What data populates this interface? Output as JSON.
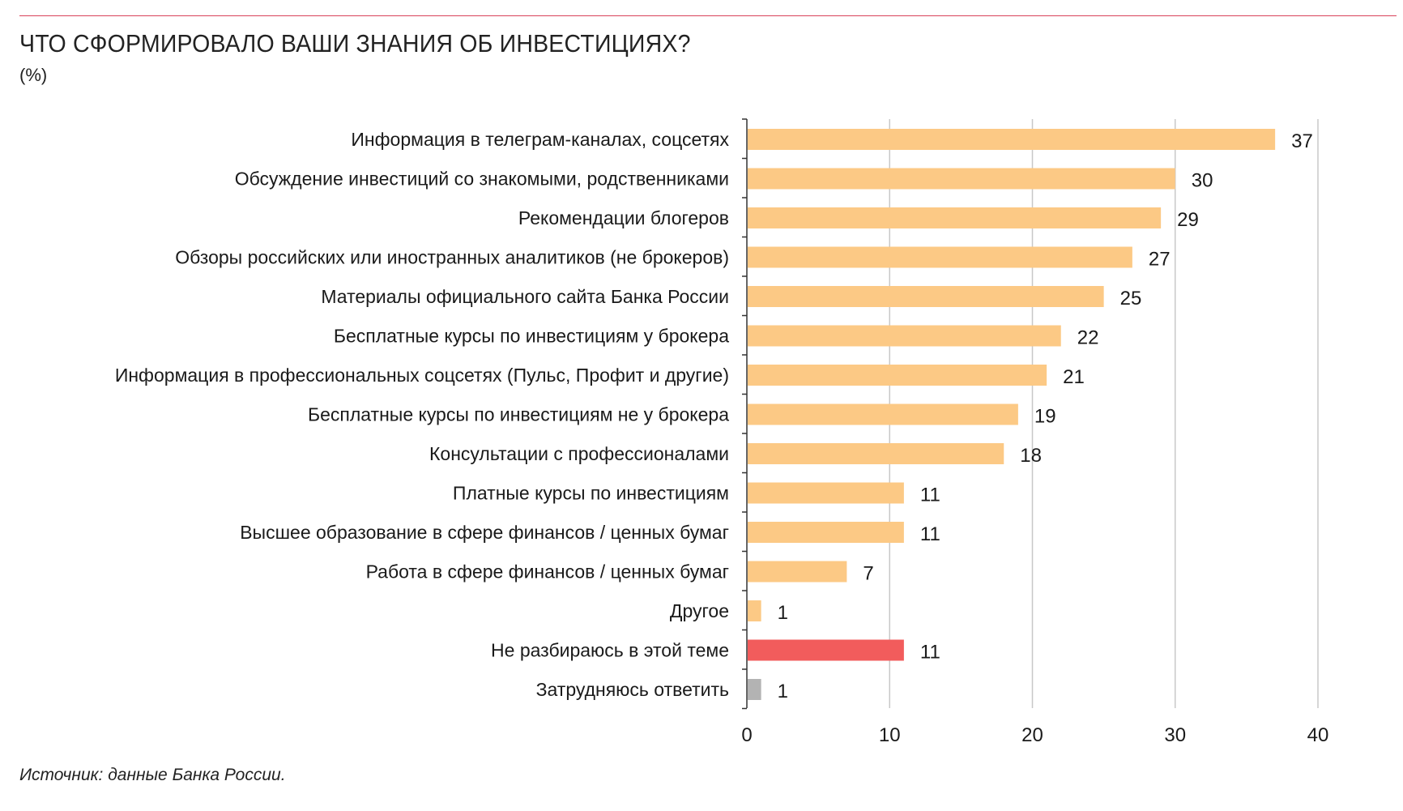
{
  "header": {
    "title": "ЧТО СФОРМИРОВАЛО ВАШИ ЗНАНИЯ ОБ ИНВЕСТИЦИЯХ?",
    "subtitle": "(%)"
  },
  "footer": {
    "source": "Источник: данные Банка России."
  },
  "colors": {
    "main_bar": "#fcc985",
    "highlight_bar": "#f25c5c",
    "neutral_bar": "#b3b3b3",
    "grid": "#c8c8c8",
    "axis": "#333333",
    "rule": "#d9435a"
  },
  "chart_data": {
    "type": "bar",
    "orientation": "horizontal",
    "title": "ЧТО СФОРМИРОВАЛО ВАШИ ЗНАНИЯ ОБ ИНВЕСТИЦИЯХ?",
    "subtitle": "(%)",
    "xlabel": "",
    "ylabel": "",
    "xlim": [
      0,
      40
    ],
    "x_ticks": [
      0,
      10,
      20,
      30,
      40
    ],
    "grid": "vertical",
    "legend": "none",
    "categories": [
      "Информация в телеграм-каналах, соцсетях",
      "Обсуждение инвестиций со знакомыми, родственниками",
      "Рекомендации блогеров",
      "Обзоры российских или иностранных аналитиков (не брокеров)",
      "Материалы официального сайта Банка России",
      "Бесплатные курсы по инвестициям у брокера",
      "Информация в профессиональных соцсетях (Пульс, Профит и другие)",
      "Бесплатные курсы по инвестициям не у брокера",
      "Консультации с профессионалами",
      "Платные курсы по инвестициям",
      "Высшее образование в сфере финансов / ценных бумаг",
      "Работа в сфере финансов / ценных бумаг",
      "Другое",
      "Не разбираюсь в этой теме",
      "Затрудняюсь ответить"
    ],
    "values": [
      37,
      30,
      29,
      27,
      25,
      22,
      21,
      19,
      18,
      11,
      11,
      7,
      1,
      11,
      1
    ],
    "bar_colors": [
      "#fcc985",
      "#fcc985",
      "#fcc985",
      "#fcc985",
      "#fcc985",
      "#fcc985",
      "#fcc985",
      "#fcc985",
      "#fcc985",
      "#fcc985",
      "#fcc985",
      "#fcc985",
      "#fcc985",
      "#f25c5c",
      "#b3b3b3"
    ]
  }
}
